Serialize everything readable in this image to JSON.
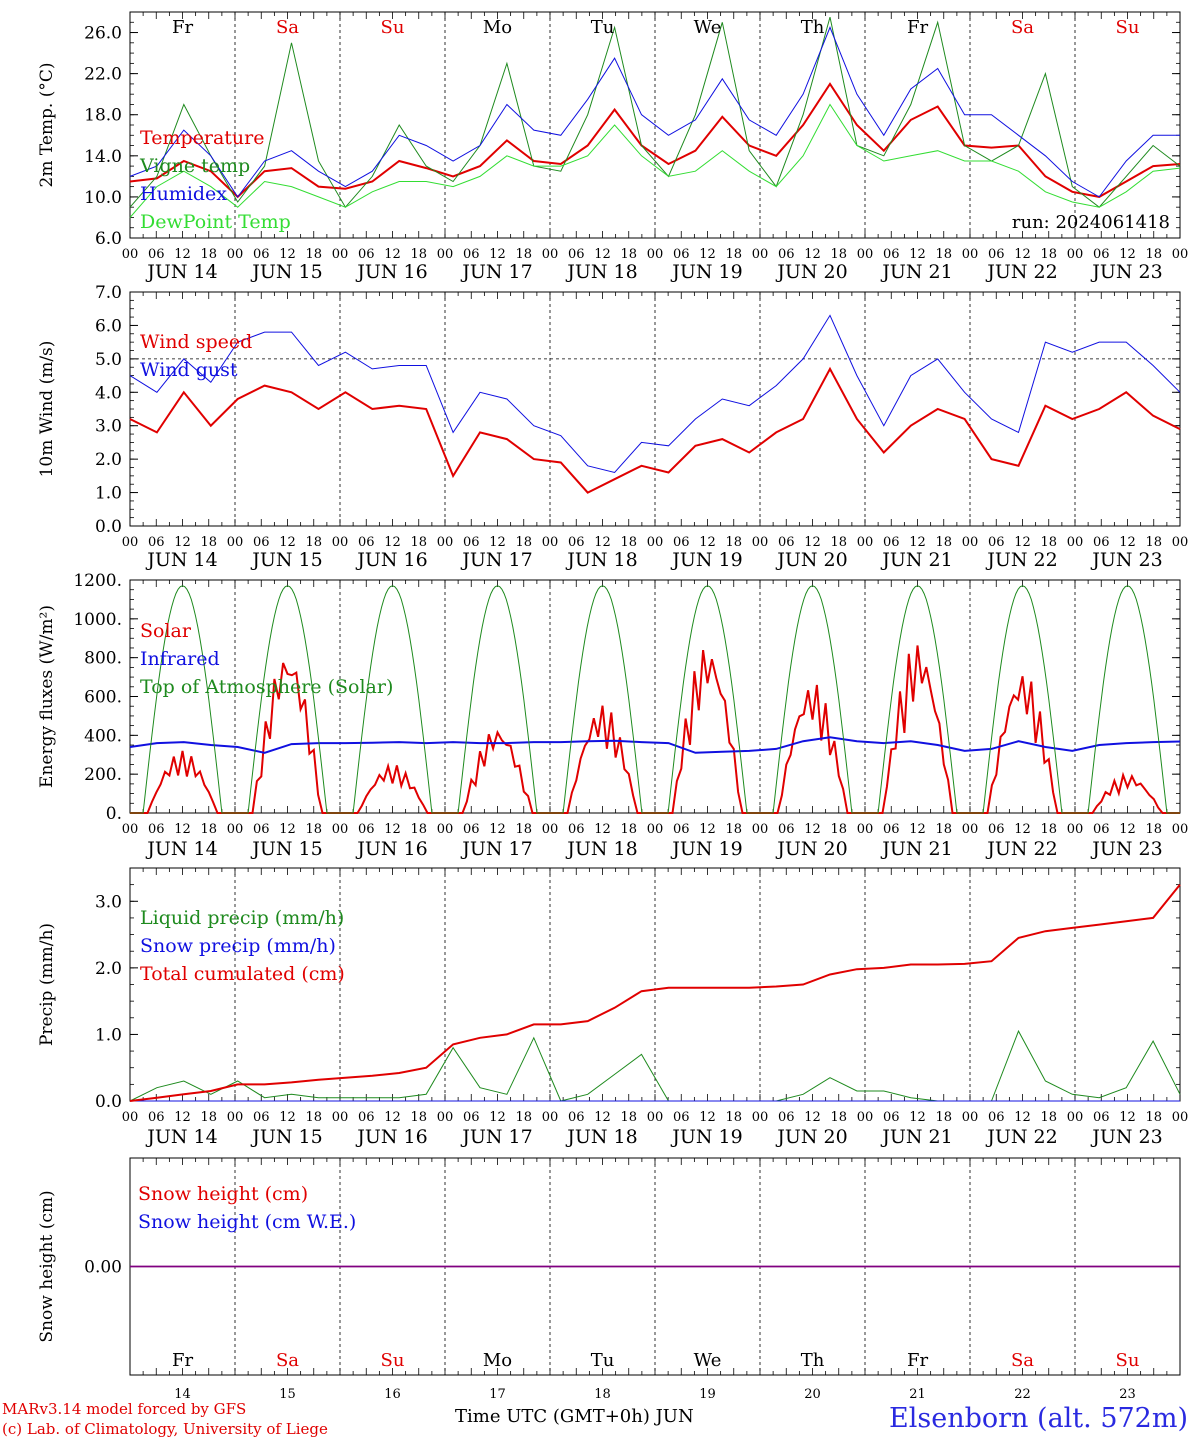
{
  "footer": {
    "credit_line1": "MARv3.14 model forced by GFS",
    "credit_line2": "(c) Lab. of Climatology, University of Liege",
    "x_axis_title": "Time UTC (GMT+0h) JUN",
    "station": "Elsenborn (alt. 572m)"
  },
  "colors": {
    "red": "#e00000",
    "blue": "#1010e0",
    "green": "#1e8a1e",
    "lightgreen": "#33dd33",
    "purple": "#800080"
  },
  "chart_data": [
    {
      "type": "line",
      "id": "temp",
      "ylabel": "2m Temp. (°C)",
      "yticks": [
        "6.0",
        "10.0",
        "14.0",
        "18.0",
        "22.0",
        "26.0"
      ],
      "ylim": [
        6,
        28
      ],
      "run_label": "run: 2024061418",
      "x_time_hours": [
        0,
        6,
        12,
        18,
        24,
        30,
        36,
        42,
        48,
        54,
        60,
        66,
        72,
        78,
        84,
        90,
        96,
        102,
        108,
        114,
        120,
        126,
        132,
        138,
        144,
        150,
        156,
        162,
        168,
        174,
        180,
        186,
        192,
        198,
        204,
        210,
        216,
        222,
        228,
        234
      ],
      "series": [
        {
          "name": "Temperature",
          "color": "#e00000",
          "width": 2,
          "values": [
            11.5,
            11.8,
            13.5,
            12.5,
            10.0,
            12.5,
            12.8,
            11.0,
            10.8,
            11.5,
            13.5,
            12.8,
            12.0,
            13.0,
            15.5,
            13.5,
            13.2,
            15.0,
            18.5,
            15.0,
            13.2,
            14.5,
            17.8,
            15.0,
            14.0,
            17.0,
            21.0,
            17.0,
            14.5,
            17.5,
            18.8,
            15.0,
            14.8,
            15.0,
            12.0,
            10.5,
            10.0,
            11.5,
            13.0,
            13.2
          ]
        },
        {
          "name": "Vigne temp",
          "color": "#1e8a1e",
          "width": 1,
          "values": [
            9.0,
            12.0,
            19.0,
            14.0,
            9.5,
            13.0,
            25.0,
            13.5,
            9.0,
            12.0,
            17.0,
            13.0,
            11.5,
            15.0,
            23.0,
            13.0,
            12.5,
            18.0,
            26.5,
            15.0,
            12.0,
            18.0,
            27.0,
            14.5,
            11.0,
            18.0,
            27.5,
            15.0,
            14.0,
            19.0,
            27.0,
            15.0,
            13.5,
            15.0,
            22.0,
            11.0,
            9.0,
            12.0,
            15.0,
            13.0
          ]
        },
        {
          "name": "Humidex",
          "color": "#1010e0",
          "width": 1,
          "values": [
            12.0,
            13.0,
            16.5,
            14.0,
            10.0,
            13.5,
            14.5,
            12.5,
            11.0,
            12.5,
            16.0,
            15.0,
            13.5,
            15.0,
            19.0,
            16.5,
            16.0,
            19.5,
            23.5,
            18.0,
            16.0,
            17.5,
            21.5,
            17.5,
            16.0,
            20.0,
            26.5,
            20.0,
            16.0,
            20.5,
            22.5,
            18.0,
            18.0,
            16.0,
            14.0,
            11.5,
            10.0,
            13.5,
            16.0,
            16.0
          ]
        },
        {
          "name": "DewPoint Temp",
          "color": "#33dd33",
          "width": 1,
          "values": [
            8.0,
            11.0,
            12.5,
            11.0,
            9.0,
            11.5,
            11.0,
            10.0,
            9.0,
            10.5,
            11.5,
            11.5,
            11.0,
            12.0,
            14.0,
            13.0,
            13.0,
            14.0,
            17.0,
            14.0,
            12.0,
            12.5,
            14.5,
            12.5,
            11.0,
            14.0,
            19.0,
            15.0,
            13.5,
            14.0,
            14.5,
            13.5,
            13.5,
            12.5,
            10.5,
            9.5,
            9.0,
            10.5,
            12.5,
            12.8
          ]
        }
      ]
    },
    {
      "type": "line",
      "id": "wind",
      "ylabel": "10m Wind (m/s)",
      "yticks": [
        "0.0",
        "1.0",
        "2.0",
        "3.0",
        "4.0",
        "5.0",
        "6.0",
        "7.0"
      ],
      "ylim": [
        0,
        7
      ],
      "ref_line": 5,
      "series": [
        {
          "name": "Wind speed",
          "color": "#e00000",
          "width": 2,
          "values": [
            3.2,
            2.8,
            4.0,
            3.0,
            3.8,
            4.2,
            4.0,
            3.5,
            4.0,
            3.5,
            3.6,
            3.5,
            1.5,
            2.8,
            2.6,
            2.0,
            1.9,
            1.0,
            1.4,
            1.8,
            1.6,
            2.4,
            2.6,
            2.2,
            2.8,
            3.2,
            4.7,
            3.2,
            2.2,
            3.0,
            3.5,
            3.2,
            2.0,
            1.8,
            3.6,
            3.2,
            3.5,
            4.0,
            3.3,
            2.9
          ]
        },
        {
          "name": "Wind gust",
          "color": "#1010e0",
          "width": 1,
          "values": [
            4.5,
            4.0,
            5.0,
            4.3,
            5.5,
            5.8,
            5.8,
            4.8,
            5.2,
            4.7,
            4.8,
            4.8,
            2.8,
            4.0,
            3.8,
            3.0,
            2.7,
            1.8,
            1.6,
            2.5,
            2.4,
            3.2,
            3.8,
            3.6,
            4.2,
            5.0,
            6.3,
            4.5,
            3.0,
            4.5,
            5.0,
            4.0,
            3.2,
            2.8,
            5.5,
            5.2,
            5.5,
            5.5,
            4.8,
            4.0
          ]
        }
      ]
    },
    {
      "type": "line",
      "id": "energy",
      "ylabel": "Energy fluxes (W/m²)",
      "yticks": [
        "0.",
        "200.",
        "400.",
        "600.",
        "800.",
        "1000.",
        "1200."
      ],
      "ylim": [
        0,
        1200
      ],
      "series": [
        {
          "name": "Solar",
          "color": "#e00000",
          "width": 2,
          "peaks": [
            320,
            850,
            250,
            450,
            560,
            880,
            680,
            890,
            740,
            200
          ]
        },
        {
          "name": "Infrared",
          "color": "#1010e0",
          "width": 2,
          "values": [
            340,
            360,
            365,
            350,
            340,
            310,
            355,
            360,
            360,
            362,
            365,
            360,
            365,
            360,
            360,
            365,
            365,
            370,
            372,
            365,
            360,
            310,
            315,
            320,
            330,
            370,
            390,
            370,
            360,
            370,
            350,
            320,
            330,
            370,
            340,
            320,
            350,
            360,
            365,
            368
          ]
        },
        {
          "name": "Top of Atmosphere (Solar)",
          "color": "#1e8a1e",
          "width": 1,
          "peak": 1170
        }
      ]
    },
    {
      "type": "line",
      "id": "precip",
      "ylabel": "Precip (mm/h)",
      "yticks": [
        "0.0",
        "1.0",
        "2.0",
        "3.0"
      ],
      "ylim": [
        0,
        3.5
      ],
      "series": [
        {
          "name": "Liquid precip (mm/h)",
          "color": "#1e8a1e",
          "width": 1,
          "values": [
            0.0,
            0.2,
            0.3,
            0.1,
            0.3,
            0.05,
            0.1,
            0.05,
            0.05,
            0.05,
            0.05,
            0.1,
            0.8,
            0.2,
            0.1,
            0.95,
            0.0,
            0.1,
            0.4,
            0.7,
            0.0,
            0.0,
            0.0,
            0.0,
            0.0,
            0.1,
            0.35,
            0.15,
            0.15,
            0.05,
            0.0,
            0.0,
            0.0,
            1.05,
            0.3,
            0.1,
            0.05,
            0.2,
            0.9,
            0.1
          ]
        },
        {
          "name": "Snow precip (mm/h)",
          "color": "#1010e0",
          "width": 1,
          "values": [
            0,
            0,
            0,
            0,
            0,
            0,
            0,
            0,
            0,
            0,
            0,
            0,
            0,
            0,
            0,
            0,
            0,
            0,
            0,
            0,
            0,
            0,
            0,
            0,
            0,
            0,
            0,
            0,
            0,
            0,
            0,
            0,
            0,
            0,
            0,
            0,
            0,
            0,
            0,
            0
          ]
        },
        {
          "name": "Total cumulated (cm)",
          "color": "#e00000",
          "width": 2,
          "values": [
            0.0,
            0.05,
            0.1,
            0.15,
            0.25,
            0.25,
            0.28,
            0.32,
            0.35,
            0.38,
            0.42,
            0.5,
            0.85,
            0.95,
            1.0,
            1.15,
            1.15,
            1.2,
            1.4,
            1.65,
            1.7,
            1.7,
            1.7,
            1.7,
            1.72,
            1.75,
            1.9,
            1.98,
            2.0,
            2.05,
            2.05,
            2.06,
            2.1,
            2.45,
            2.55,
            2.6,
            2.65,
            2.7,
            2.75,
            3.25
          ]
        }
      ]
    },
    {
      "type": "line",
      "id": "snow",
      "ylabel": "Snow height (cm)",
      "yticks": [
        "0.00"
      ],
      "ylim": [
        -1,
        1
      ],
      "series": [
        {
          "name": "Snow height (cm)",
          "color": "#e00000",
          "values": [
            0,
            0
          ]
        },
        {
          "name": "Snow height (cm W.E.)",
          "color": "#1010e0",
          "values": [
            0,
            0
          ]
        }
      ]
    }
  ],
  "days": {
    "dates": [
      "JUN 14",
      "JUN 15",
      "JUN 16",
      "JUN 17",
      "JUN 18",
      "JUN 19",
      "JUN 20",
      "JUN 21",
      "JUN 22",
      "JUN 23"
    ],
    "weekdays": [
      "Fr",
      "Sa",
      "Su",
      "Mo",
      "Tu",
      "We",
      "Th",
      "Fr",
      "Sa",
      "Su"
    ],
    "weekday_colors": [
      "#000000",
      "#e00000",
      "#e00000",
      "#000000",
      "#000000",
      "#000000",
      "#000000",
      "#000000",
      "#e00000",
      "#e00000"
    ],
    "day_numbers": [
      "14",
      "15",
      "16",
      "17",
      "18",
      "19",
      "20",
      "21",
      "22",
      "23"
    ],
    "hour_labels": [
      "00",
      "06",
      "12",
      "18"
    ],
    "last_hour_label": "00"
  }
}
